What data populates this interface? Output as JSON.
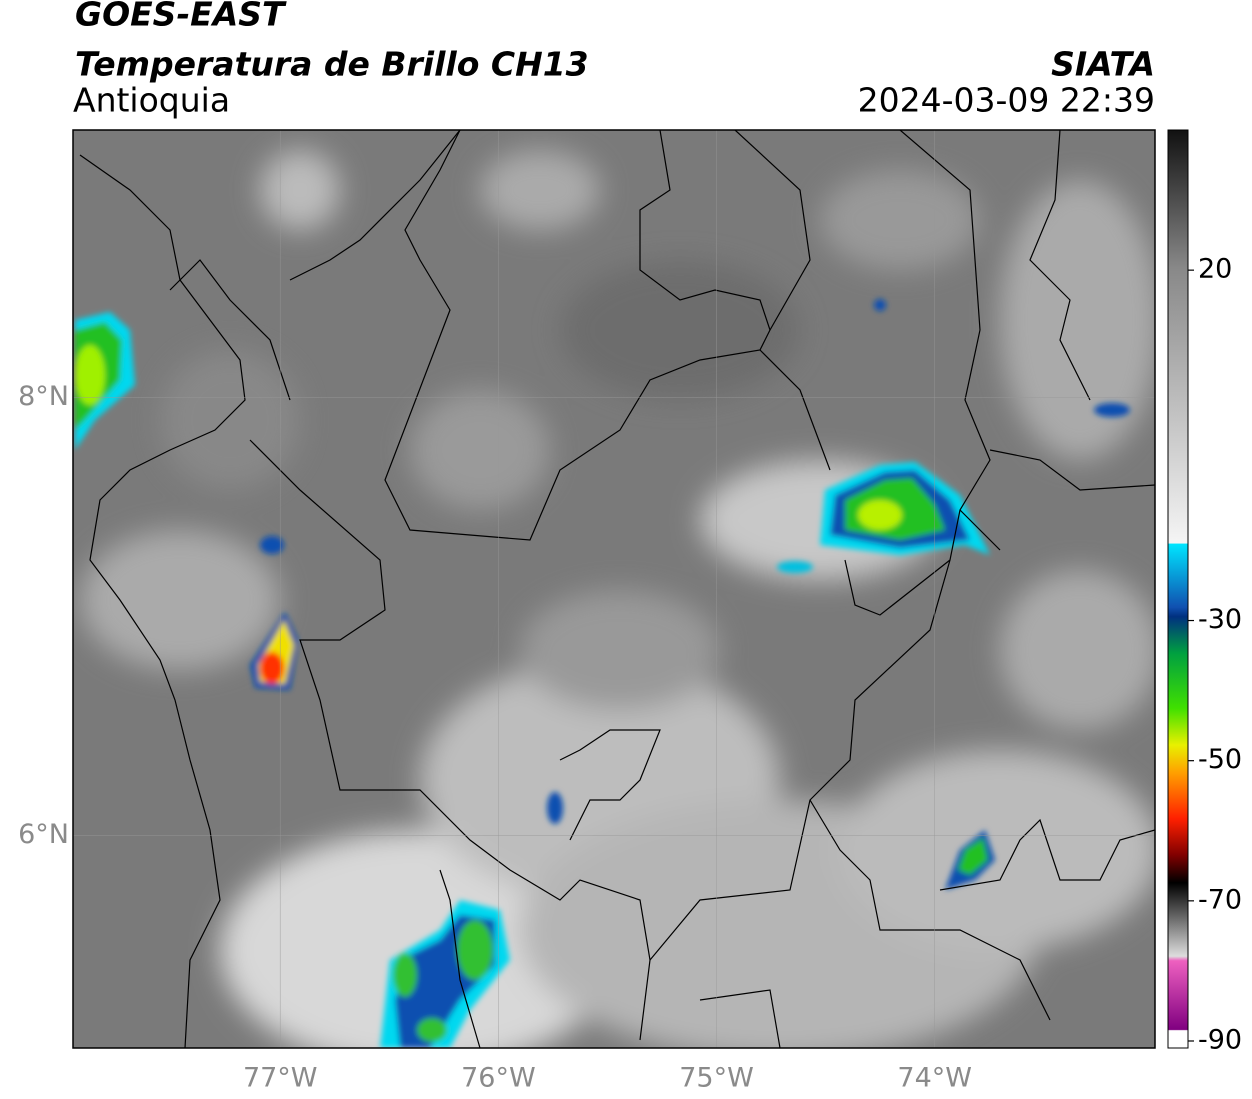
{
  "header": {
    "title": "GOES-EAST",
    "subtitle": "Temperatura de Brillo CH13",
    "region": "Antioquia",
    "source": "SIATA",
    "timestamp": "2024-03-09 22:39"
  },
  "map": {
    "xlim": [
      -77.95,
      -72.99
    ],
    "ylim": [
      5.03,
      9.22
    ],
    "xticks": [
      {
        "value": -77,
        "label": "77°W"
      },
      {
        "value": -76,
        "label": "76°W"
      },
      {
        "value": -75,
        "label": "75°W"
      },
      {
        "value": -74,
        "label": "74°W"
      }
    ],
    "yticks": [
      {
        "value": 8,
        "label": "8°N"
      },
      {
        "value": 6,
        "label": "6°N"
      }
    ],
    "grid": true
  },
  "colorbar": {
    "lim": [
      -91,
      40
    ],
    "ticks": [
      20,
      -30,
      -50,
      -70,
      -90
    ]
  }
}
